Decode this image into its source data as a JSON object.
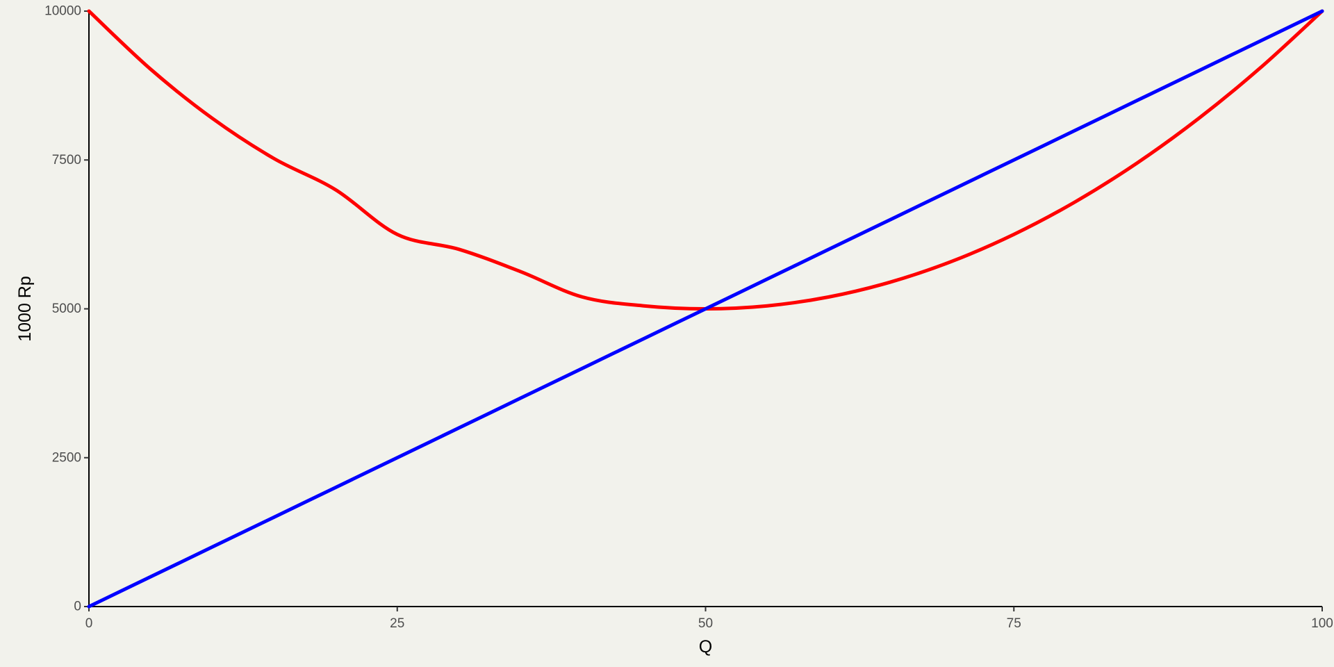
{
  "chart_data": {
    "type": "line",
    "title": "",
    "xlabel": "Q",
    "ylabel": "1000 Rp",
    "xlim": [
      0,
      100
    ],
    "ylim": [
      0,
      10000
    ],
    "x_ticks": [
      "0",
      "25",
      "50",
      "75",
      "100"
    ],
    "y_ticks": [
      "0",
      "2500",
      "5000",
      "7500",
      "10000"
    ],
    "grid": false,
    "legend": "none",
    "x": [
      0,
      5,
      10,
      15,
      20,
      25,
      30,
      35,
      40,
      45,
      50,
      55,
      60,
      65,
      70,
      75,
      80,
      85,
      90,
      95,
      100
    ],
    "series": [
      {
        "color": "#ff0000",
        "values": [
          10000,
          9025,
          8200,
          7525,
          7000,
          6250,
          6000,
          5625,
          5200,
          5050,
          5000,
          5050,
          5200,
          5450,
          5800,
          6250,
          6800,
          7450,
          8200,
          9050,
          10000
        ]
      },
      {
        "color": "#0000ff",
        "values": [
          0,
          500,
          1000,
          1500,
          2000,
          2500,
          3000,
          3500,
          4000,
          4500,
          5000,
          5500,
          6000,
          6500,
          7000,
          7500,
          8000,
          8500,
          9000,
          9500,
          10000
        ]
      }
    ]
  }
}
